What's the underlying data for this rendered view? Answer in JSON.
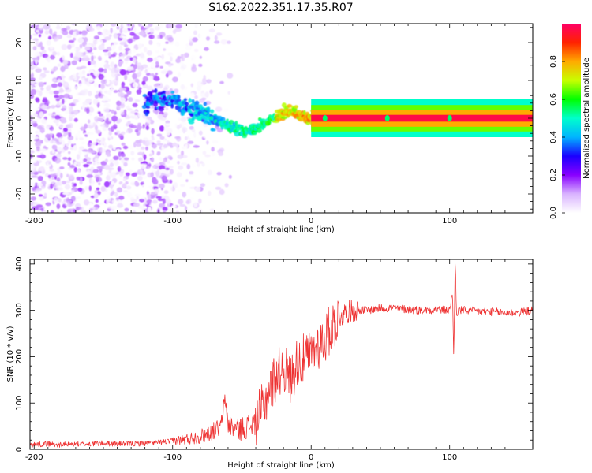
{
  "figure": {
    "title": "S162.2022.351.17.35.R07"
  },
  "chart_data": [
    {
      "type": "heatmap",
      "xlabel": "Height of straight line (km)",
      "ylabel": "Frequency (Hz)",
      "xlim": [
        -203,
        160
      ],
      "ylim": [
        -25,
        25
      ],
      "xticks": [
        -200,
        -100,
        0,
        100
      ],
      "yticks": [
        -20,
        -10,
        0,
        10,
        20
      ],
      "colorbar": {
        "label": "Normalized spectral amplitude",
        "range": [
          0,
          1
        ],
        "ticks": [
          "0.0",
          "0.2",
          "0.4",
          "0.6",
          "0.8"
        ],
        "colors": [
          "#ffffff",
          "#d9b3ff",
          "#8800ff",
          "#1a00ff",
          "#00b4ff",
          "#00ffcc",
          "#00ff00",
          "#c8ff00",
          "#ffaa00",
          "#ff2200",
          "#ff0066"
        ]
      },
      "ridge": {
        "x": [
          -120,
          -110,
          -100,
          -90,
          -80,
          -70,
          -60,
          -50,
          -45,
          -40,
          -35,
          -30,
          -25,
          -20,
          -15,
          -10,
          -5,
          0,
          10,
          50,
          100,
          160
        ],
        "y": [
          4,
          5,
          4.5,
          3,
          1.5,
          0,
          -2,
          -3,
          -3.5,
          -2.5,
          -1.5,
          -0.5,
          0.5,
          1.5,
          2,
          1,
          0.3,
          0,
          0,
          0,
          0,
          0
        ]
      },
      "tone": {
        "from_x": 0,
        "to_x": 160,
        "frequency": 0,
        "amplitude": 0.95
      },
      "noise_region": {
        "x_range": [
          -203,
          -100
        ],
        "frequency_range": [
          -25,
          25
        ]
      }
    },
    {
      "type": "line",
      "xlabel": "Height of straight line (km)",
      "ylabel": "SNR (10 * v/v)",
      "xlim": [
        -203,
        160
      ],
      "ylim": [
        0,
        410
      ],
      "xticks": [
        -200,
        -100,
        0,
        100
      ],
      "yticks": [
        0,
        100,
        200,
        300,
        400
      ],
      "color": "#ee3333",
      "series": [
        {
          "x": [
            -203,
            -190,
            -180,
            -170,
            -160,
            -150,
            -140,
            -130,
            -120,
            -110,
            -100,
            -95,
            -90,
            -85,
            -80,
            -75,
            -70,
            -65,
            -62,
            -60,
            -55,
            -50,
            -45,
            -40,
            -35,
            -30,
            -25,
            -20,
            -15,
            -10,
            -5,
            0,
            5,
            10,
            15,
            20,
            25,
            30,
            35,
            40,
            50,
            60,
            70,
            80,
            90,
            100,
            102,
            103,
            104,
            105,
            106,
            110,
            120,
            130,
            140,
            150,
            160
          ],
          "values": [
            10,
            12,
            10,
            11,
            12,
            13,
            12,
            12,
            13,
            15,
            18,
            20,
            22,
            25,
            28,
            33,
            40,
            50,
            110,
            55,
            45,
            45,
            50,
            60,
            90,
            130,
            160,
            180,
            150,
            190,
            195,
            205,
            225,
            240,
            265,
            285,
            295,
            300,
            302,
            300,
            305,
            305,
            302,
            300,
            302,
            300,
            340,
            195,
            410,
            285,
            300,
            300,
            298,
            297,
            295,
            295,
            300
          ]
        }
      ]
    }
  ]
}
